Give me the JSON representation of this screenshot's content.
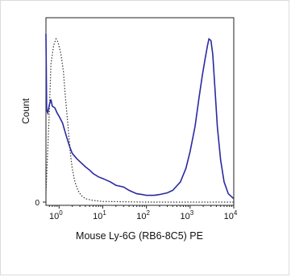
{
  "chart_data": {
    "type": "histogram-overlay",
    "title": "",
    "xlabel": "Mouse Ly-6G (RB6-8C5) PE",
    "ylabel": "Count",
    "x_scale": "log",
    "xlim": [
      0.5,
      10000
    ],
    "ylim": [
      0,
      1
    ],
    "x_ticks": [
      {
        "value": 1,
        "base": "10",
        "exp": "0"
      },
      {
        "value": 10,
        "base": "10",
        "exp": "1"
      },
      {
        "value": 100,
        "base": "10",
        "exp": "2"
      },
      {
        "value": 1000,
        "base": "10",
        "exp": "3"
      },
      {
        "value": 10000,
        "base": "10",
        "exp": "4"
      }
    ],
    "y_ticks": [
      {
        "value": 0,
        "label": "0"
      }
    ],
    "grid": false,
    "legend": "none",
    "series": [
      {
        "style": "dotted",
        "color": "#333333",
        "points": [
          [
            0.5,
            0.05
          ],
          [
            0.6,
            0.55
          ],
          [
            0.65,
            0.82
          ],
          [
            0.75,
            0.93
          ],
          [
            0.85,
            0.97
          ],
          [
            0.95,
            0.95
          ],
          [
            1.1,
            0.88
          ],
          [
            1.25,
            0.78
          ],
          [
            1.4,
            0.62
          ],
          [
            1.6,
            0.45
          ],
          [
            1.8,
            0.3
          ],
          [
            2.0,
            0.2
          ],
          [
            2.3,
            0.12
          ],
          [
            2.7,
            0.07
          ],
          [
            3.2,
            0.04
          ],
          [
            4,
            0.02
          ],
          [
            6,
            0.01
          ],
          [
            10,
            0.004
          ],
          [
            100,
            0.0
          ],
          [
            10000,
            0.0
          ]
        ]
      },
      {
        "style": "solid",
        "color": "#2a2aa0",
        "points": [
          [
            0.5,
            1.0
          ],
          [
            0.52,
            0.55
          ],
          [
            0.55,
            0.53
          ],
          [
            0.6,
            0.58
          ],
          [
            0.65,
            0.61
          ],
          [
            0.7,
            0.57
          ],
          [
            0.8,
            0.56
          ],
          [
            0.9,
            0.53
          ],
          [
            1.0,
            0.51
          ],
          [
            1.2,
            0.47
          ],
          [
            1.4,
            0.41
          ],
          [
            1.6,
            0.36
          ],
          [
            1.8,
            0.32
          ],
          [
            2.0,
            0.29
          ],
          [
            2.5,
            0.26
          ],
          [
            3,
            0.24
          ],
          [
            4,
            0.21
          ],
          [
            5,
            0.19
          ],
          [
            6,
            0.17
          ],
          [
            8,
            0.15
          ],
          [
            10,
            0.14
          ],
          [
            15,
            0.12
          ],
          [
            20,
            0.1
          ],
          [
            30,
            0.09
          ],
          [
            40,
            0.07
          ],
          [
            60,
            0.05
          ],
          [
            80,
            0.045
          ],
          [
            100,
            0.04
          ],
          [
            150,
            0.04
          ],
          [
            200,
            0.045
          ],
          [
            300,
            0.055
          ],
          [
            400,
            0.07
          ],
          [
            600,
            0.12
          ],
          [
            800,
            0.2
          ],
          [
            1000,
            0.3
          ],
          [
            1300,
            0.45
          ],
          [
            1600,
            0.62
          ],
          [
            1900,
            0.75
          ],
          [
            2200,
            0.85
          ],
          [
            2500,
            0.93
          ],
          [
            2700,
            0.97
          ],
          [
            3000,
            0.96
          ],
          [
            3300,
            0.88
          ],
          [
            3700,
            0.68
          ],
          [
            4200,
            0.45
          ],
          [
            5000,
            0.25
          ],
          [
            6000,
            0.12
          ],
          [
            7500,
            0.05
          ],
          [
            10000,
            0.02
          ]
        ]
      }
    ]
  }
}
